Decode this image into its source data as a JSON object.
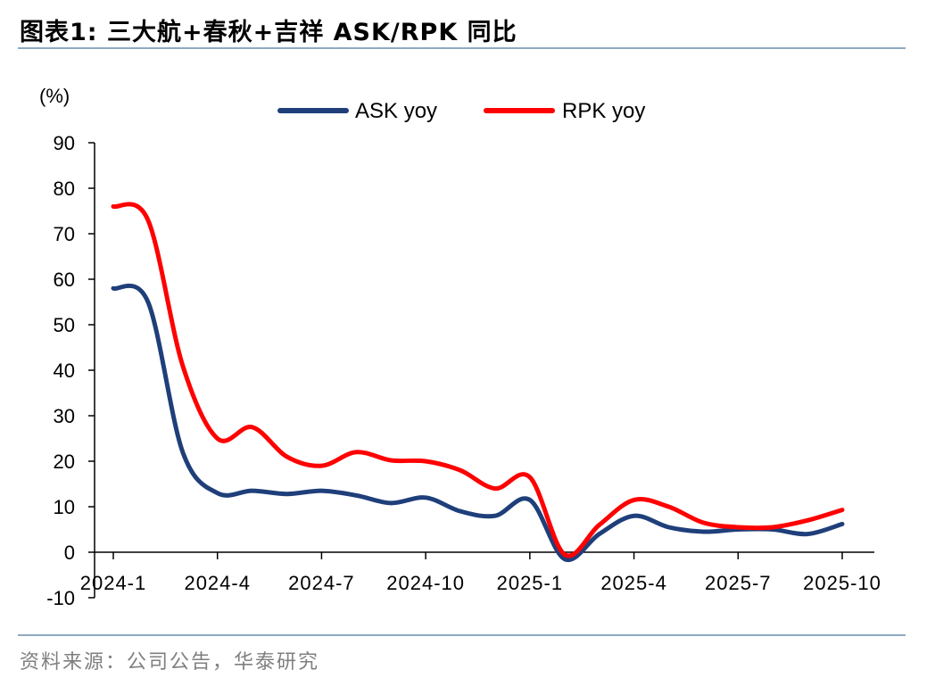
{
  "header": {
    "title": "图表1:  三大航+春秋+吉祥 ASK/RPK 同比",
    "source": "资料来源：公司公告，华泰研究"
  },
  "chart_data": {
    "type": "line",
    "title": "三大航+春秋+吉祥 ASK/RPK 同比",
    "ylabel": "(%)",
    "xlabel": "",
    "ylim": [
      -10,
      90
    ],
    "yticks": [
      -10,
      0,
      10,
      20,
      30,
      40,
      50,
      60,
      70,
      80,
      90
    ],
    "x": [
      "2024-1",
      "2024-2",
      "2024-3",
      "2024-4",
      "2024-5",
      "2024-6",
      "2024-7",
      "2024-8",
      "2024-9",
      "2024-10",
      "2024-11",
      "2024-12",
      "2025-1",
      "2025-2",
      "2025-3",
      "2025-4",
      "2025-5",
      "2025-6",
      "2025-7",
      "2025-8",
      "2025-9",
      "2025-10"
    ],
    "xtick_labels": [
      "2024-1",
      "2024-4",
      "2024-7",
      "2024-10",
      "2025-1",
      "2025-4",
      "2025-7",
      "2025-10"
    ],
    "xtick_index": [
      0,
      3,
      6,
      9,
      12,
      15,
      18,
      21
    ],
    "legend_position": "top",
    "series": [
      {
        "name": "ASK yoy",
        "color": "#1f3f7a",
        "values": [
          58,
          55,
          22,
          13,
          13.5,
          12.8,
          13.5,
          12.5,
          10.8,
          12,
          9,
          8,
          11.5,
          -1.5,
          4,
          8,
          5.5,
          4.5,
          5,
          5,
          4,
          6.2
        ]
      },
      {
        "name": "RPK yoy",
        "color": "#ff0000",
        "values": [
          76,
          73,
          41,
          25,
          27.5,
          21,
          19,
          22,
          20.2,
          20,
          18,
          14,
          16.5,
          -0.5,
          6,
          11.5,
          10,
          6.5,
          5.5,
          5.5,
          7,
          9.3
        ]
      }
    ]
  }
}
